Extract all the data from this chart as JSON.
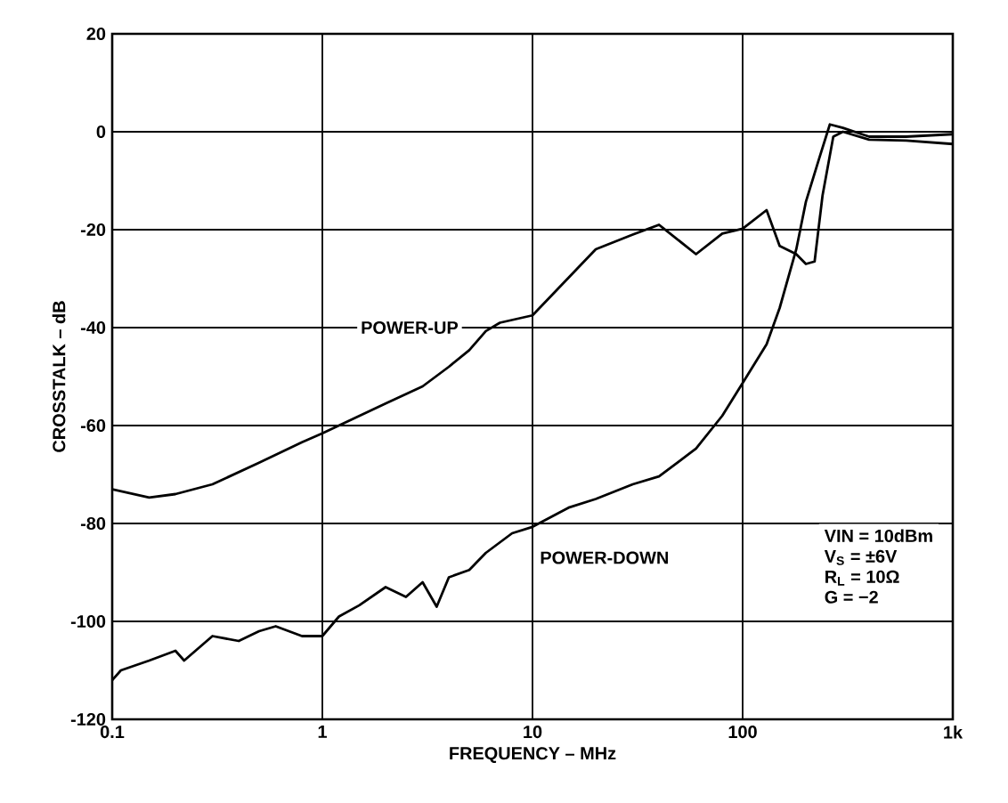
{
  "chart_data": {
    "type": "line",
    "xlabel": "FREQUENCY – MHz",
    "ylabel": "CROSSTALK – dB",
    "log": "x",
    "grid": true,
    "line_style": "solid",
    "marker": "none",
    "xlim": [
      0.1,
      1000
    ],
    "ylim": [
      -120,
      20
    ],
    "xticks": [
      0.1,
      1,
      10,
      100,
      {
        "value": 1000,
        "label": "1k"
      }
    ],
    "yticks": [
      -120,
      -100,
      -80,
      -60,
      -40,
      -20,
      0,
      20
    ],
    "annotations": [
      "VIN = 10dBm",
      "V$_{S}$ = ±6V",
      "R$_{L}$ = 10Ω",
      "G = −2"
    ],
    "series": [
      {
        "name": "POWER-UP",
        "color": "#000000",
        "x": [
          0.1,
          0.15,
          0.2,
          0.3,
          0.5,
          0.8,
          1,
          2,
          3,
          4,
          5,
          6,
          7,
          10,
          20,
          30,
          40,
          60,
          80,
          100,
          130,
          150,
          180,
          200,
          220,
          240,
          270,
          300,
          400,
          600,
          1000
        ],
        "values": [
          -73,
          -74.7,
          -74,
          -72,
          -67.6,
          -63.4,
          -61.6,
          -55.5,
          -52,
          -48,
          -44.6,
          -40.7,
          -39,
          -37.5,
          -24,
          -21,
          -19,
          -25,
          -20.8,
          -19.8,
          -16,
          -23.3,
          -25,
          -27,
          -26.5,
          -13,
          -1,
          0,
          -1.6,
          -1.8,
          -2.5
        ]
      },
      {
        "name": "POWER-DOWN",
        "color": "#000000",
        "x": [
          0.1,
          0.11,
          0.15,
          0.2,
          0.22,
          0.3,
          0.4,
          0.5,
          0.6,
          0.8,
          1,
          1.2,
          1.5,
          2,
          2.5,
          3,
          3.5,
          4,
          5,
          6,
          8,
          10,
          15,
          20,
          30,
          40,
          60,
          80,
          100,
          130,
          150,
          180,
          200,
          230,
          260,
          300,
          400,
          600,
          1000
        ],
        "values": [
          -112,
          -110,
          -108,
          -106,
          -108,
          -103,
          -104,
          -102,
          -101,
          -103,
          -103,
          -99,
          -96.7,
          -93,
          -95,
          -92,
          -97,
          -91,
          -89.5,
          -86,
          -82,
          -80.7,
          -76.7,
          -75,
          -72,
          -70.4,
          -64.7,
          -58,
          -51.3,
          -43.4,
          -36,
          -24,
          -14.3,
          -5.8,
          1.5,
          0.8,
          -1,
          -1,
          -0.5
        ]
      }
    ]
  }
}
